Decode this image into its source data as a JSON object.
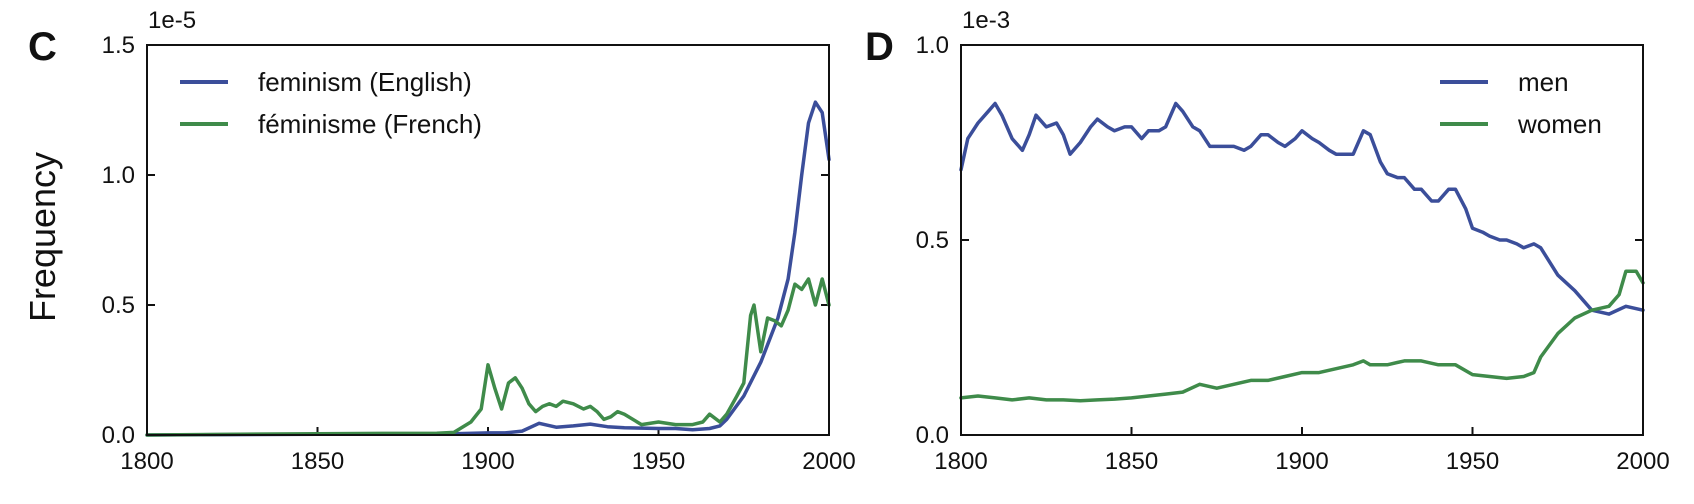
{
  "chart_data": [
    {
      "type": "line",
      "panel_label": "C",
      "ylabel": "Frequency",
      "xlabel": "",
      "y_scale_multiplier": "1e-5",
      "xlim": [
        1800,
        2000
      ],
      "ylim": [
        0,
        1.5
      ],
      "x_ticks": [
        "1800",
        "1850",
        "1900",
        "1950",
        "2000"
      ],
      "y_ticks": [
        "0.0",
        "0.5",
        "1.0",
        "1.5"
      ],
      "legend_position": "top-left",
      "grid": false,
      "series": [
        {
          "name": "feminism (English)",
          "color": "#3b4e9a",
          "x": [
            1800,
            1850,
            1890,
            1900,
            1905,
            1910,
            1915,
            1920,
            1925,
            1930,
            1935,
            1940,
            1950,
            1955,
            1960,
            1965,
            1968,
            1970,
            1975,
            1980,
            1985,
            1988,
            1990,
            1992,
            1994,
            1996,
            1998,
            2000
          ],
          "y": [
            0.0,
            0.003,
            0.005,
            0.008,
            0.008,
            0.015,
            0.045,
            0.03,
            0.035,
            0.042,
            0.032,
            0.028,
            0.025,
            0.025,
            0.02,
            0.025,
            0.035,
            0.06,
            0.15,
            0.28,
            0.45,
            0.6,
            0.78,
            1.0,
            1.2,
            1.28,
            1.24,
            1.06
          ]
        },
        {
          "name": "féminisme (French)",
          "color": "#3f8b4a",
          "x": [
            1800,
            1850,
            1885,
            1890,
            1895,
            1898,
            1900,
            1902,
            1904,
            1906,
            1908,
            1910,
            1912,
            1914,
            1916,
            1918,
            1920,
            1922,
            1925,
            1928,
            1930,
            1932,
            1934,
            1936,
            1938,
            1940,
            1945,
            1950,
            1955,
            1960,
            1963,
            1965,
            1968,
            1970,
            1973,
            1975,
            1977,
            1978,
            1980,
            1982,
            1984,
            1986,
            1988,
            1990,
            1992,
            1994,
            1996,
            1998,
            2000
          ],
          "y": [
            0.0,
            0.005,
            0.007,
            0.01,
            0.05,
            0.1,
            0.27,
            0.18,
            0.1,
            0.2,
            0.22,
            0.18,
            0.12,
            0.09,
            0.11,
            0.12,
            0.11,
            0.13,
            0.12,
            0.1,
            0.11,
            0.09,
            0.06,
            0.07,
            0.09,
            0.08,
            0.04,
            0.05,
            0.04,
            0.04,
            0.05,
            0.08,
            0.05,
            0.08,
            0.15,
            0.2,
            0.46,
            0.5,
            0.32,
            0.45,
            0.44,
            0.42,
            0.48,
            0.58,
            0.56,
            0.6,
            0.5,
            0.6,
            0.5
          ]
        }
      ]
    },
    {
      "type": "line",
      "panel_label": "D",
      "ylabel": "",
      "xlabel": "",
      "y_scale_multiplier": "1e-3",
      "xlim": [
        1800,
        2000
      ],
      "ylim": [
        0,
        1.0
      ],
      "x_ticks": [
        "1800",
        "1850",
        "1900",
        "1950",
        "2000"
      ],
      "y_ticks": [
        "0.0",
        "0.5",
        "1.0"
      ],
      "legend_position": "top-right",
      "grid": false,
      "series": [
        {
          "name": "men",
          "color": "#3b4e9a",
          "x": [
            1800,
            1802,
            1805,
            1808,
            1810,
            1812,
            1815,
            1818,
            1820,
            1822,
            1825,
            1828,
            1830,
            1832,
            1835,
            1838,
            1840,
            1843,
            1845,
            1848,
            1850,
            1853,
            1855,
            1858,
            1860,
            1863,
            1865,
            1868,
            1870,
            1873,
            1875,
            1878,
            1880,
            1883,
            1885,
            1888,
            1890,
            1893,
            1895,
            1898,
            1900,
            1903,
            1905,
            1908,
            1910,
            1913,
            1915,
            1918,
            1920,
            1923,
            1925,
            1928,
            1930,
            1933,
            1935,
            1938,
            1940,
            1943,
            1945,
            1948,
            1950,
            1953,
            1955,
            1958,
            1960,
            1963,
            1965,
            1968,
            1970,
            1975,
            1980,
            1985,
            1990,
            1995,
            2000
          ],
          "y": [
            0.68,
            0.76,
            0.8,
            0.83,
            0.85,
            0.82,
            0.76,
            0.73,
            0.77,
            0.82,
            0.79,
            0.8,
            0.77,
            0.72,
            0.75,
            0.79,
            0.81,
            0.79,
            0.78,
            0.79,
            0.79,
            0.76,
            0.78,
            0.78,
            0.79,
            0.85,
            0.83,
            0.79,
            0.78,
            0.74,
            0.74,
            0.74,
            0.74,
            0.73,
            0.74,
            0.77,
            0.77,
            0.75,
            0.74,
            0.76,
            0.78,
            0.76,
            0.75,
            0.73,
            0.72,
            0.72,
            0.72,
            0.78,
            0.77,
            0.7,
            0.67,
            0.66,
            0.66,
            0.63,
            0.63,
            0.6,
            0.6,
            0.63,
            0.63,
            0.58,
            0.53,
            0.52,
            0.51,
            0.5,
            0.5,
            0.49,
            0.48,
            0.49,
            0.48,
            0.41,
            0.37,
            0.32,
            0.31,
            0.33,
            0.32
          ]
        },
        {
          "name": "women",
          "color": "#3f8b4a",
          "x": [
            1800,
            1805,
            1810,
            1815,
            1820,
            1825,
            1830,
            1835,
            1840,
            1845,
            1850,
            1855,
            1860,
            1865,
            1870,
            1875,
            1880,
            1885,
            1890,
            1895,
            1900,
            1905,
            1910,
            1915,
            1918,
            1920,
            1925,
            1930,
            1935,
            1940,
            1945,
            1950,
            1955,
            1960,
            1965,
            1968,
            1970,
            1975,
            1980,
            1985,
            1990,
            1993,
            1995,
            1998,
            2000
          ],
          "y": [
            0.095,
            0.1,
            0.095,
            0.09,
            0.095,
            0.09,
            0.09,
            0.088,
            0.09,
            0.092,
            0.095,
            0.1,
            0.105,
            0.11,
            0.13,
            0.12,
            0.13,
            0.14,
            0.14,
            0.15,
            0.16,
            0.16,
            0.17,
            0.18,
            0.19,
            0.18,
            0.18,
            0.19,
            0.19,
            0.18,
            0.18,
            0.155,
            0.15,
            0.145,
            0.15,
            0.16,
            0.2,
            0.26,
            0.3,
            0.32,
            0.33,
            0.36,
            0.42,
            0.42,
            0.39
          ]
        }
      ]
    }
  ]
}
